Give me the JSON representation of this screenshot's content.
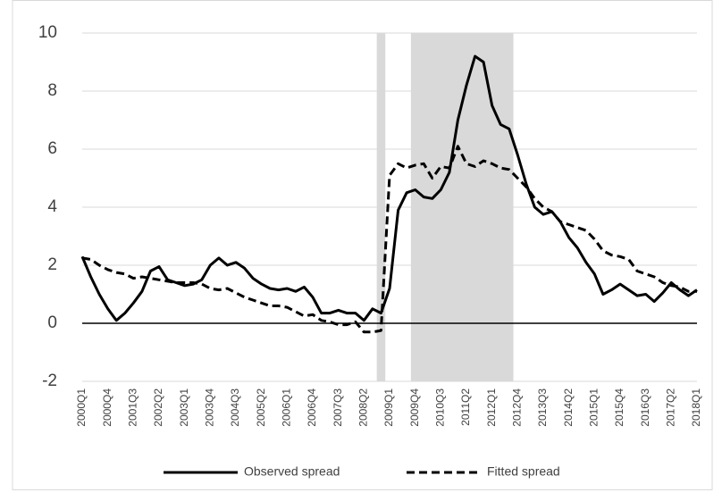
{
  "chart_data": {
    "type": "line",
    "categories": [
      "2000Q1",
      null,
      null,
      "2000Q4",
      null,
      null,
      "2001Q3",
      null,
      null,
      "2002Q2",
      null,
      null,
      "2003Q1",
      null,
      null,
      "2003Q4",
      null,
      null,
      "2004Q3",
      null,
      null,
      "2005Q2",
      null,
      null,
      "2006Q1",
      null,
      null,
      "2006Q4",
      null,
      null,
      "2007Q3",
      null,
      null,
      "2008Q2",
      null,
      null,
      "2009Q1",
      null,
      null,
      "2009Q4",
      null,
      null,
      "2010Q3",
      null,
      null,
      "2011Q2",
      null,
      null,
      "2012Q1",
      null,
      null,
      "2012Q4",
      null,
      null,
      "2013Q3",
      null,
      null,
      "2014Q2",
      null,
      null,
      "2015Q1",
      null,
      null,
      "2015Q4",
      null,
      null,
      "2016Q3",
      null,
      null,
      "2017Q2",
      null,
      null,
      "2018Q1"
    ],
    "series": [
      {
        "name": "Observed spread",
        "color": "#000000",
        "style": "solid",
        "values": [
          2.3,
          1.6,
          1.0,
          0.5,
          0.1,
          0.35,
          0.7,
          1.1,
          1.8,
          1.95,
          1.5,
          1.4,
          1.3,
          1.35,
          1.5,
          2.0,
          2.25,
          2.0,
          2.1,
          1.9,
          1.55,
          1.35,
          1.2,
          1.15,
          1.2,
          1.1,
          1.25,
          0.9,
          0.35,
          0.35,
          0.45,
          0.35,
          0.35,
          0.1,
          0.5,
          0.35,
          1.2,
          3.9,
          4.5,
          4.6,
          4.35,
          4.3,
          4.6,
          5.2,
          7.0,
          8.2,
          9.2,
          9.0,
          7.5,
          6.85,
          6.7,
          5.8,
          4.8,
          4.0,
          3.75,
          3.85,
          3.5,
          2.95,
          2.6,
          2.1,
          1.7,
          1.0,
          1.15,
          1.35,
          1.15,
          0.95,
          1.0,
          0.75,
          1.05,
          1.4,
          1.15,
          0.95,
          1.15
        ]
      },
      {
        "name": "Fitted spread",
        "color": "#000000",
        "style": "dashed",
        "values": [
          2.25,
          2.2,
          2.0,
          1.85,
          1.75,
          1.7,
          1.55,
          1.6,
          1.55,
          1.5,
          1.45,
          1.4,
          1.4,
          1.4,
          1.35,
          1.2,
          1.15,
          1.2,
          1.05,
          0.9,
          0.8,
          0.7,
          0.6,
          0.6,
          0.55,
          0.4,
          0.25,
          0.3,
          0.1,
          0.05,
          -0.05,
          -0.05,
          0.05,
          -0.3,
          -0.3,
          -0.25,
          5.1,
          5.5,
          5.35,
          5.45,
          5.5,
          5.0,
          5.4,
          5.35,
          6.1,
          5.5,
          5.4,
          5.6,
          5.5,
          5.35,
          5.3,
          5.0,
          4.7,
          4.3,
          4.0,
          3.85,
          3.5,
          3.4,
          3.3,
          3.2,
          2.9,
          2.5,
          2.35,
          2.3,
          2.2,
          1.8,
          1.7,
          1.6,
          1.4,
          1.3,
          1.25,
          1.1,
          1.1
        ]
      }
    ],
    "shaded": [
      {
        "from": 35,
        "to": 35
      },
      {
        "from": 39,
        "to": 50
      }
    ],
    "shade_color": "#d9d9d9",
    "ylim": [
      -2,
      10
    ],
    "yticks": [
      -2,
      0,
      2,
      4,
      6,
      8,
      10
    ],
    "grid": true,
    "legend": "bottom"
  }
}
